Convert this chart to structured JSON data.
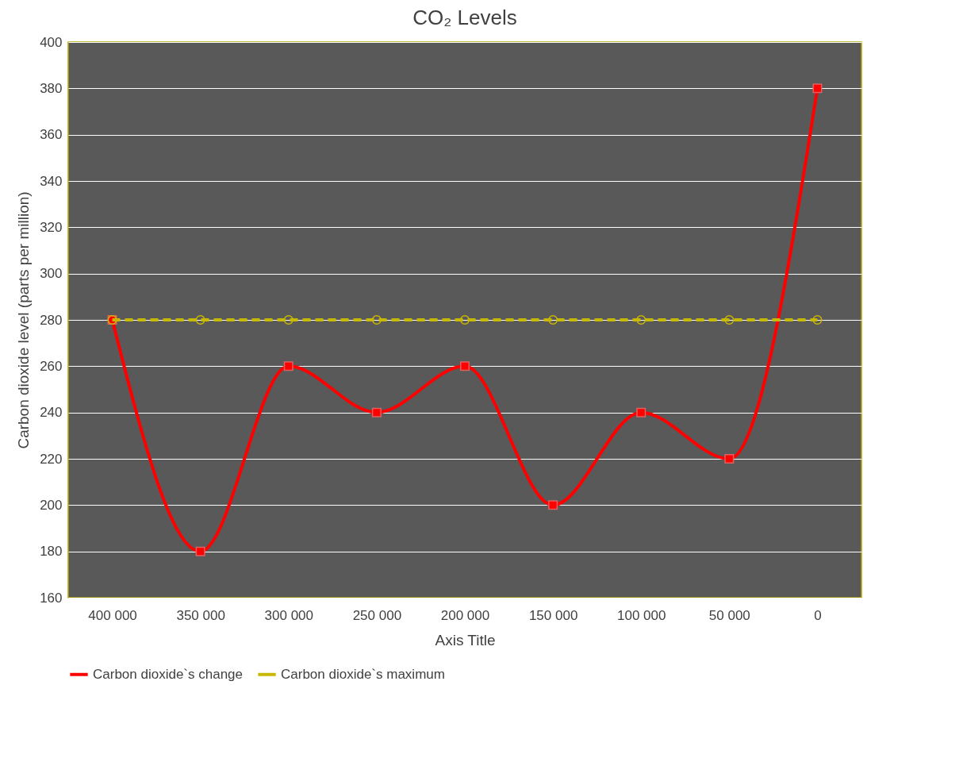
{
  "chart_data": {
    "type": "line",
    "title": "CO₂ Levels",
    "xlabel": "Axis Title",
    "ylabel": "Carbon dioxide level (parts per million)",
    "categories": [
      "400 000",
      "350 000",
      "300 000",
      "250 000",
      "200 000",
      "150 000",
      "100 000",
      "50 000",
      "0"
    ],
    "series": [
      {
        "name": "Carbon dioxide`s change",
        "color": "#ff0000",
        "marker": "square",
        "line_style": "solid",
        "values": [
          280,
          180,
          260,
          240,
          260,
          200,
          240,
          220,
          380
        ]
      },
      {
        "name": "Carbon dioxide`s maximum",
        "color": "#c9b800",
        "marker": "circle",
        "line_style": "dashed",
        "values": [
          280,
          280,
          280,
          280,
          280,
          280,
          280,
          280,
          280
        ]
      }
    ],
    "ylim": [
      160,
      400
    ],
    "yticks": [
      160,
      180,
      200,
      220,
      240,
      260,
      280,
      300,
      320,
      340,
      360,
      380,
      400
    ],
    "grid": "y",
    "legend": "bottom"
  }
}
